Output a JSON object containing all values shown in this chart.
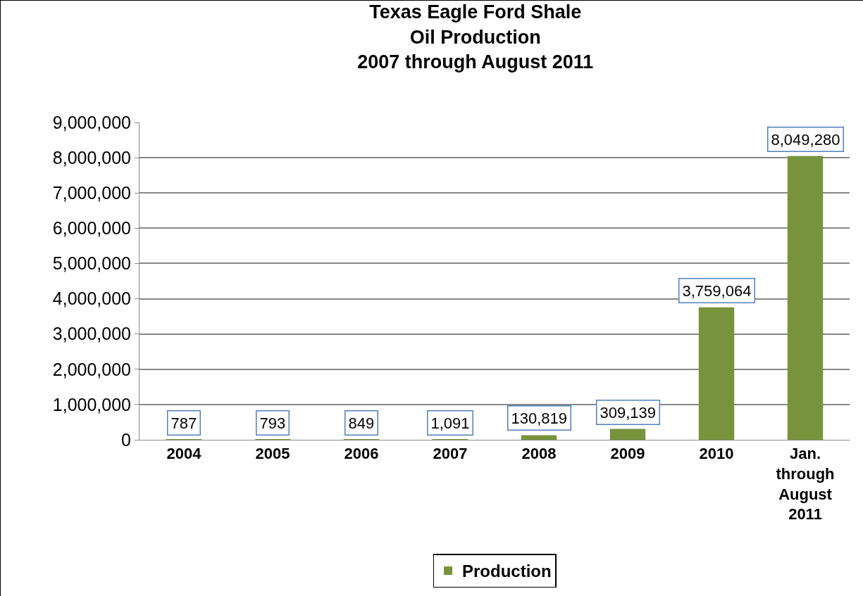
{
  "chart_data": {
    "type": "bar",
    "title": "Texas Eagle Ford Shale\nOil Production\n2007 through August 2011",
    "categories": [
      "2004",
      "2005",
      "2006",
      "2007",
      "2008",
      "2009",
      "2010",
      "Jan. through August 2011"
    ],
    "series": [
      {
        "name": "Production",
        "color": "#77933c",
        "values": [
          787,
          793,
          849,
          1091,
          130819,
          309139,
          3759064,
          8049280
        ],
        "value_labels": [
          "787",
          "793",
          "849",
          "1,091",
          "130,819",
          "309,139",
          "3,759,064",
          "8,049,280"
        ]
      }
    ],
    "ylim": [
      0,
      9000000
    ],
    "yticks": [
      {
        "value": 0,
        "label": "0"
      },
      {
        "value": 1000000,
        "label": "1,000,000"
      },
      {
        "value": 2000000,
        "label": "2,000,000"
      },
      {
        "value": 3000000,
        "label": "3,000,000"
      },
      {
        "value": 4000000,
        "label": "4,000,000"
      },
      {
        "value": 5000000,
        "label": "5,000,000"
      },
      {
        "value": 6000000,
        "label": "6,000,000"
      },
      {
        "value": 7000000,
        "label": "7,000,000"
      },
      {
        "value": 8000000,
        "label": "8,000,000"
      },
      {
        "value": 9000000,
        "label": "9,000,000"
      }
    ],
    "grid": "y",
    "legend": "bottom"
  }
}
